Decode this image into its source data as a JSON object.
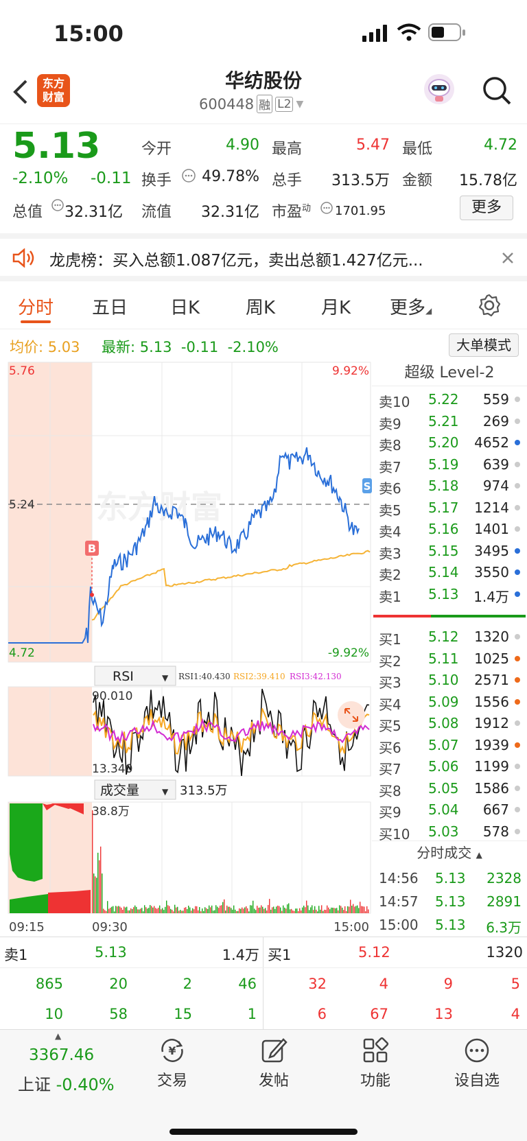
{
  "status": {
    "time": "15:00"
  },
  "nav": {
    "logo_line1": "东方",
    "logo_line2": "财富",
    "title": "华纺股份",
    "code": "600448",
    "badge_rong": "融",
    "badge_l2": "L2"
  },
  "quote": {
    "price": "5.13",
    "pct": "-2.10%",
    "chg": "-0.11",
    "items": [
      {
        "label": "今开",
        "value": "4.90"
      },
      {
        "label": "最高",
        "value": "5.47"
      },
      {
        "label": "最低",
        "value": "4.72"
      },
      {
        "label": "换手",
        "value": "49.78%"
      },
      {
        "label": "总手",
        "value": "313.5万"
      },
      {
        "label": "金额",
        "value": "15.78亿"
      },
      {
        "label": "总值",
        "value": "32.31亿"
      },
      {
        "label": "流值",
        "value": "32.31亿"
      },
      {
        "label": "市盈",
        "sup": "动",
        "value": "1701.95"
      }
    ],
    "more": "更多"
  },
  "notice": {
    "text": "龙虎榜：买入总额1.087亿元，卖出总额1.427亿元..."
  },
  "tabs": [
    "分时",
    "五日",
    "日K",
    "周K",
    "月K",
    "更多"
  ],
  "infobar": {
    "avg_label": "均价:",
    "avg": "5.03",
    "latest_label": "最新:",
    "latest": "5.13",
    "chg": "-0.11",
    "pct": "-2.10%",
    "mode_btn": "大单模式"
  },
  "chart": {
    "price_high": "5.76",
    "price_mid": "5.24",
    "price_low": "4.72",
    "pct_high": "9.92%",
    "pct_low": "-9.92%",
    "marker_b": "B",
    "marker_s": "S",
    "rsi_label": "RSI",
    "rsi1": "RSI1:40.430",
    "rsi2": "RSI2:39.410",
    "rsi3": "RSI3:42.130",
    "rsi_high": "90.010",
    "rsi_low": "13.340",
    "vol_label": "成交量",
    "vol_total": "313.5万",
    "vol_max": "38.8万",
    "t_start": "09:15",
    "t_open": "09:30",
    "t_end": "15:00",
    "watermark": "东方财富"
  },
  "book": {
    "title": "超级 Level-2",
    "asks": [
      {
        "label": "卖10",
        "price": "5.22",
        "vol": "559",
        "dot": "#ccc"
      },
      {
        "label": "卖9",
        "price": "5.21",
        "vol": "269",
        "dot": "#ccc"
      },
      {
        "label": "卖8",
        "price": "5.20",
        "vol": "4652",
        "dot": "#2a6fd8"
      },
      {
        "label": "卖7",
        "price": "5.19",
        "vol": "639",
        "dot": "#ccc"
      },
      {
        "label": "卖6",
        "price": "5.18",
        "vol": "974",
        "dot": "#ccc"
      },
      {
        "label": "卖5",
        "price": "5.17",
        "vol": "1214",
        "dot": "#ccc"
      },
      {
        "label": "卖4",
        "price": "5.16",
        "vol": "1401",
        "dot": "#ccc"
      },
      {
        "label": "卖3",
        "price": "5.15",
        "vol": "3495",
        "dot": "#2a6fd8"
      },
      {
        "label": "卖2",
        "price": "5.14",
        "vol": "3550",
        "dot": "#2a6fd8"
      },
      {
        "label": "卖1",
        "price": "5.13",
        "vol": "1.4万",
        "dot": "#2a6fd8"
      }
    ],
    "bids": [
      {
        "label": "买1",
        "price": "5.12",
        "vol": "1320",
        "dot": "#ccc"
      },
      {
        "label": "买2",
        "price": "5.11",
        "vol": "1025",
        "dot": "#ee6a1a"
      },
      {
        "label": "买3",
        "price": "5.10",
        "vol": "2571",
        "dot": "#ee6a1a"
      },
      {
        "label": "买4",
        "price": "5.09",
        "vol": "1556",
        "dot": "#ee6a1a"
      },
      {
        "label": "买5",
        "price": "5.08",
        "vol": "1912",
        "dot": "#ccc"
      },
      {
        "label": "买6",
        "price": "5.07",
        "vol": "1939",
        "dot": "#ee6a1a"
      },
      {
        "label": "买7",
        "price": "5.06",
        "vol": "1199",
        "dot": "#ccc"
      },
      {
        "label": "买8",
        "price": "5.05",
        "vol": "1586",
        "dot": "#ccc"
      },
      {
        "label": "买9",
        "price": "5.04",
        "vol": "667",
        "dot": "#ccc"
      },
      {
        "label": "买10",
        "price": "5.03",
        "vol": "578",
        "dot": "#ccc"
      }
    ],
    "ticks_title": "分时成交",
    "ticks": [
      {
        "time": "14:56",
        "price": "5.13",
        "vol": "2328"
      },
      {
        "time": "14:57",
        "price": "5.13",
        "vol": "2891"
      },
      {
        "time": "15:00",
        "price": "5.13",
        "vol": "6.3万"
      }
    ]
  },
  "bottom": {
    "sell_label": "卖1",
    "sell_price": "5.13",
    "sell_vol": "1.4万",
    "buy_label": "买1",
    "buy_price": "5.12",
    "buy_vol": "1320",
    "sell_row1": [
      "865",
      "20",
      "2",
      "46"
    ],
    "sell_row2": [
      "10",
      "58",
      "15",
      "1"
    ],
    "buy_row1": [
      "32",
      "4",
      "9",
      "5"
    ],
    "buy_row2": [
      "6",
      "67",
      "13",
      "4"
    ]
  },
  "footer": {
    "index_value": "3367.46",
    "index_name": "上证",
    "index_pct": "-0.40%",
    "items": [
      {
        "label": "交易",
        "icon": "yen-cycle-icon"
      },
      {
        "label": "发帖",
        "icon": "edit-icon"
      },
      {
        "label": "功能",
        "icon": "grid-icon"
      },
      {
        "label": "设自选",
        "icon": "more-dots-icon"
      }
    ]
  },
  "colors": {
    "up": "#e33333",
    "down": "#1a9a1a",
    "price_line": "#2a6fd8",
    "avg_line": "#f5b335",
    "accent": "#e8541a"
  }
}
